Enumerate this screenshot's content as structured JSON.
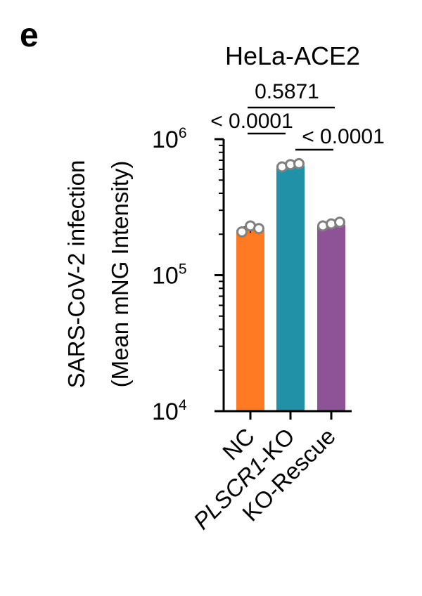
{
  "panel_letter": "e",
  "chart_data": {
    "type": "bar",
    "title": "HeLa-ACE2",
    "ylabel_lines": [
      "SARS-CoV-2 infection",
      "(Mean mNG Intensity)"
    ],
    "yscale": "log",
    "ylim": [
      10000,
      1000000
    ],
    "yticks": [
      {
        "base": "10",
        "exp": "4",
        "value": 10000
      },
      {
        "base": "10",
        "exp": "5",
        "value": 100000
      },
      {
        "base": "10",
        "exp": "6",
        "value": 1000000
      }
    ],
    "categories": [
      {
        "label": "NC",
        "italic_part": ""
      },
      {
        "label": "-KO",
        "italic_part": "PLSCR1"
      },
      {
        "label": "KO-Rescue",
        "italic_part": ""
      }
    ],
    "values": [
      215000,
      640000,
      235000
    ],
    "errors": [
      10000,
      20000,
      8000
    ],
    "colors": [
      "#FF7A23",
      "#2191A8",
      "#8E5396"
    ],
    "points": [
      [
        208000,
        230000,
        220000
      ],
      [
        625000,
        650000,
        660000
      ],
      [
        230000,
        238000,
        245000
      ]
    ],
    "comparisons": [
      {
        "from": 0,
        "to": 2,
        "label": "0.5871"
      },
      {
        "from": 0,
        "to": 1,
        "label": "< 0.0001"
      },
      {
        "from": 1,
        "to": 2,
        "label": "< 0.0001"
      }
    ]
  }
}
